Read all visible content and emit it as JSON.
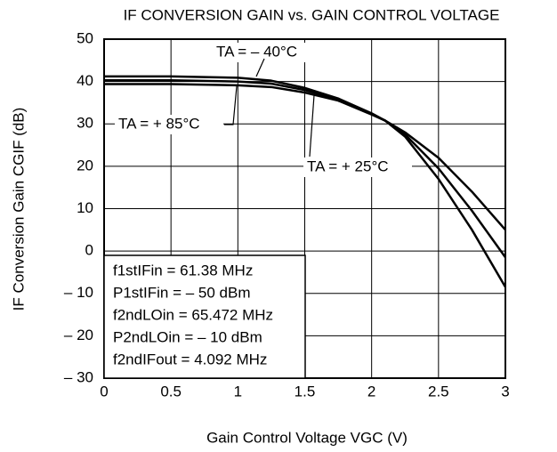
{
  "chart_data": {
    "type": "line",
    "title": "IF CONVERSION GAIN vs. GAIN CONTROL VOLTAGE",
    "x_label": "Gain Control Voltage  VGC  (V)",
    "y_label": "IF Conversion Gain  CGIF  (dB)",
    "x": [
      0,
      0.5,
      1,
      1.25,
      1.5,
      1.75,
      2,
      2.1,
      2.25,
      2.5,
      2.75,
      3
    ],
    "series": [
      {
        "name": "TA = – 40°C",
        "color": "#000000",
        "values": [
          41.2,
          41.2,
          40.9,
          40.2,
          38.5,
          36.0,
          32.5,
          30.8,
          27,
          17,
          5,
          -8.5
        ]
      },
      {
        "name": "TA = + 25°C",
        "color": "#000000",
        "values": [
          40.3,
          40.3,
          40.0,
          39.5,
          38.0,
          35.8,
          32.3,
          30.8,
          27.5,
          19.5,
          9.5,
          -1.5
        ]
      },
      {
        "name": "TA = + 85°C",
        "color": "#000000",
        "values": [
          39.4,
          39.4,
          39.1,
          38.7,
          37.4,
          35.5,
          32.2,
          30.8,
          28,
          22,
          14,
          5
        ]
      }
    ],
    "conditions": [
      "f1stIFin = 61.38 MHz",
      "P1stIFin = – 50 dBm",
      "f2ndLOin = 65.472 MHz",
      "P2ndLOin = – 10 dBm",
      "f2ndIFout = 4.092 MHz"
    ],
    "xlim": [
      0,
      3
    ],
    "xticks": [
      0,
      0.5,
      1,
      1.5,
      2,
      2.5,
      3
    ],
    "ylim": [
      -30,
      50
    ],
    "yticks": [
      {
        "value": -30,
        "label": "– 30"
      },
      {
        "value": -20,
        "label": "– 20"
      },
      {
        "value": -10,
        "label": "– 10"
      },
      0,
      10,
      20,
      30,
      40,
      50
    ],
    "grid": true
  }
}
